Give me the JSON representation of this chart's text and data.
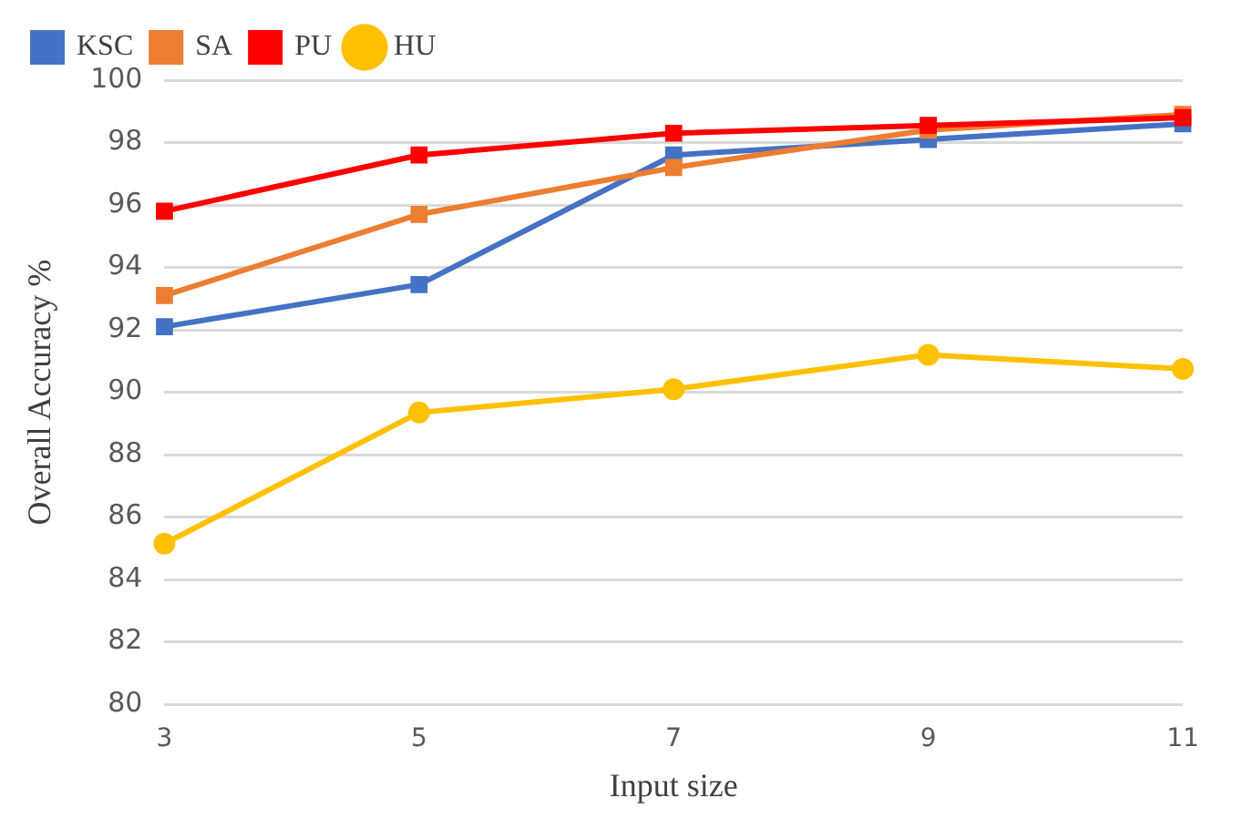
{
  "chart_data": {
    "type": "line",
    "xlabel": "Input size",
    "ylabel": "Overall Accuracy %",
    "categories": [
      "3",
      "5",
      "7",
      "9",
      "11"
    ],
    "ylim": [
      80,
      100
    ],
    "yticks": [
      80,
      82,
      84,
      86,
      88,
      90,
      92,
      94,
      96,
      98,
      100
    ],
    "grid": "y",
    "legend": "top left",
    "line_style": "solid",
    "series": [
      {
        "name": "KSC",
        "color": "#4472c4",
        "marker": "square",
        "values": [
          92.1,
          93.45,
          97.6,
          98.1,
          98.6
        ]
      },
      {
        "name": "SA",
        "color": "#ed7d31",
        "marker": "square",
        "values": [
          93.1,
          95.7,
          97.2,
          98.4,
          98.9
        ]
      },
      {
        "name": "PU",
        "color": "#ff0000",
        "marker": "square",
        "values": [
          95.8,
          97.6,
          98.3,
          98.55,
          98.8
        ]
      },
      {
        "name": "HU",
        "color": "#ffc000",
        "marker": "circle",
        "values": [
          85.15,
          89.35,
          90.1,
          91.2,
          90.75
        ]
      }
    ]
  }
}
